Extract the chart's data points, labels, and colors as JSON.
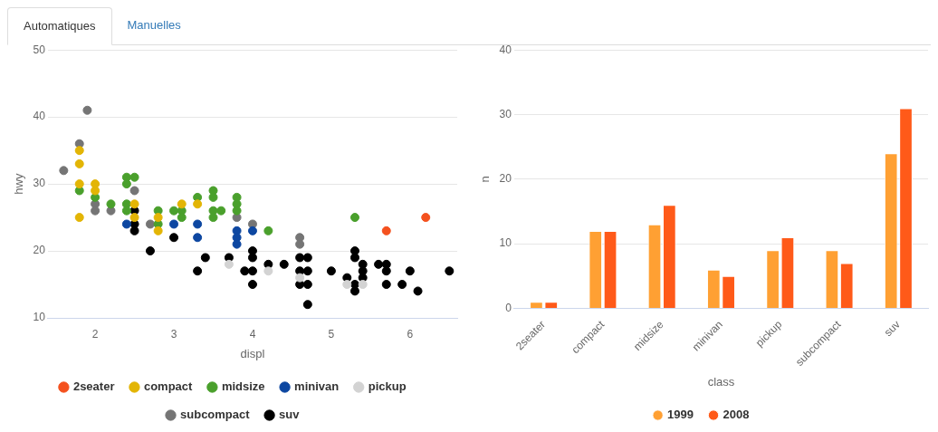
{
  "chart_data": [
    {
      "type": "other",
      "annotations": [
        "Automatiques",
        "Manuelles"
      ]
    },
    {
      "type": "scatter",
      "xlabel": "displ",
      "ylabel": "hwy",
      "xlim": [
        1.4,
        6.6
      ],
      "xticks": [
        2,
        3,
        4,
        5,
        6
      ],
      "ylim": [
        10,
        50
      ],
      "yticks": [
        10,
        20,
        30,
        40,
        50
      ],
      "grid": "y",
      "legend": "bottom",
      "marker": "circle",
      "series": [
        {
          "name": "2seater",
          "color": "#f4511e",
          "x": [
            5.7,
            6.2
          ],
          "values": [
            23,
            25
          ]
        },
        {
          "name": "compact",
          "color": "#e3b505",
          "x": [
            1.8,
            1.8,
            1.8,
            1.8,
            2.0,
            2.0,
            2.5,
            2.5,
            2.8,
            2.8,
            3.1,
            3.3
          ],
          "values": [
            35,
            33,
            30,
            25,
            30,
            29,
            27,
            25,
            25,
            23,
            27,
            27
          ]
        },
        {
          "name": "midsize",
          "color": "#4aa02c",
          "x": [
            1.8,
            2.0,
            2.2,
            2.4,
            2.5,
            2.4,
            2.4,
            2.4,
            2.8,
            2.8,
            3.0,
            3.1,
            3.1,
            3.3,
            3.5,
            3.5,
            3.5,
            3.6,
            3.5,
            3.8,
            3.8,
            3.8,
            4.2,
            5.3
          ],
          "values": [
            29,
            28,
            27,
            31,
            31,
            30,
            27,
            26,
            26,
            24,
            26,
            26,
            25,
            28,
            29,
            28,
            26,
            26,
            25,
            28,
            27,
            26,
            23,
            25
          ]
        },
        {
          "name": "minivan",
          "color": "#0d47a1",
          "x": [
            2.4,
            3.0,
            3.3,
            3.3,
            3.8,
            3.8,
            3.8,
            4.0
          ],
          "values": [
            24,
            24,
            24,
            22,
            23,
            22,
            21,
            23
          ]
        },
        {
          "name": "pickup",
          "color": "#d3d3d3",
          "x": [
            3.7,
            4.2,
            4.6,
            5.2,
            5.4
          ],
          "values": [
            18,
            17,
            16,
            15,
            15
          ]
        },
        {
          "name": "subcompact",
          "color": "#757575",
          "x": [
            1.6,
            1.9,
            1.8,
            2.5,
            2.0,
            2.0,
            2.2,
            2.7,
            3.8,
            4.0,
            4.6,
            4.6
          ],
          "values": [
            32,
            41,
            36,
            29,
            27,
            26,
            26,
            24,
            25,
            24,
            22,
            21
          ]
        },
        {
          "name": "suv",
          "color": "#000000",
          "x": [
            2.5,
            2.5,
            2.5,
            2.7,
            3.0,
            3.3,
            3.4,
            3.7,
            3.9,
            4.0,
            4.0,
            4.0,
            4.0,
            4.2,
            4.4,
            4.6,
            4.6,
            4.6,
            4.7,
            4.7,
            4.7,
            4.7,
            5.0,
            5.2,
            5.3,
            5.3,
            5.3,
            5.3,
            5.4,
            5.4,
            5.4,
            5.6,
            5.7,
            5.7,
            5.7,
            5.9,
            6.0,
            6.1,
            6.5
          ],
          "values": [
            26,
            24,
            23,
            20,
            22,
            17,
            19,
            19,
            17,
            20,
            19,
            17,
            15,
            18,
            18,
            19,
            17,
            15,
            19,
            17,
            15,
            12,
            17,
            16,
            20,
            19,
            15,
            14,
            18,
            17,
            16,
            18,
            18,
            17,
            15,
            15,
            17,
            14,
            17
          ]
        }
      ]
    },
    {
      "type": "bar",
      "xlabel": "class",
      "ylabel": "n",
      "categories": [
        "2seater",
        "compact",
        "midsize",
        "minivan",
        "pickup",
        "subcompact",
        "suv"
      ],
      "ylim": [
        0,
        40
      ],
      "yticks": [
        0,
        10,
        20,
        30,
        40
      ],
      "grid": "y",
      "legend": "bottom",
      "series": [
        {
          "name": "1999",
          "color": "#ffa033",
          "values": [
            1,
            12,
            13,
            6,
            9,
            9,
            24
          ]
        },
        {
          "name": "2008",
          "color": "#ff5a19",
          "values": [
            1,
            12,
            16,
            5,
            11,
            7,
            31
          ]
        }
      ]
    }
  ]
}
